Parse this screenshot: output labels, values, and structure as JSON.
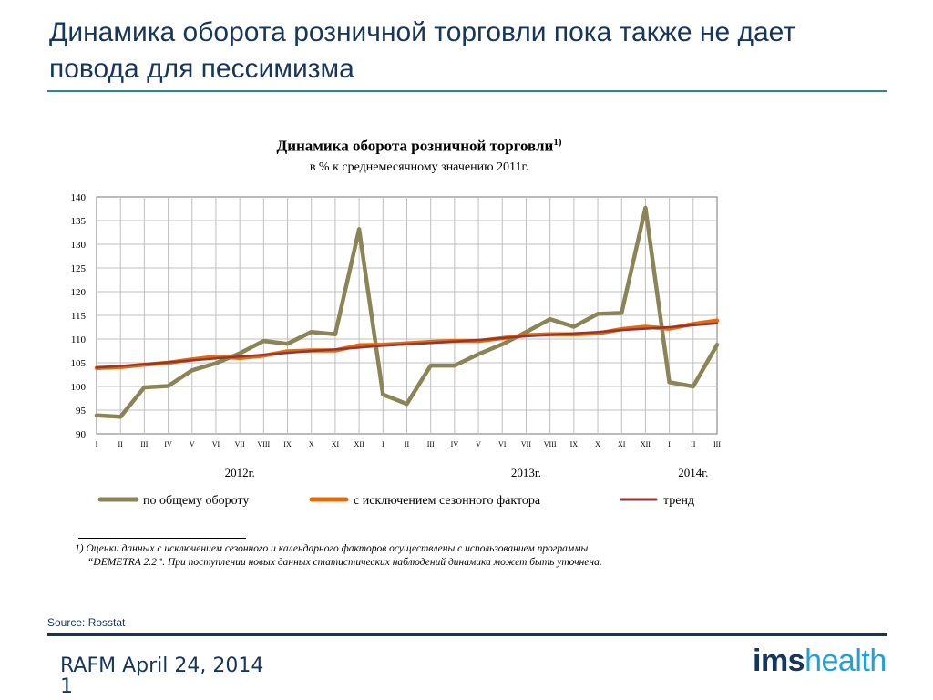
{
  "slide": {
    "title": "Динамика оборота розничной торговли пока также не дает повода для пессимизма",
    "source": "Source: Rosstat",
    "footer": "RAFM April 24, 2014",
    "page_number": "1",
    "logo_ims": "ims",
    "logo_health": "health"
  },
  "colors": {
    "title": "#17365d",
    "rule_top": "#31849b",
    "total": "#8b8457",
    "seasonal": "#e36c09",
    "trend": "#943634"
  },
  "chart_data": {
    "type": "line",
    "title": "Динамика оборота розничной торговли",
    "title_sup": "1)",
    "subtitle": "в % к среднемесячному значению 2011г.",
    "ylim": [
      90,
      140
    ],
    "yticks": [
      90,
      95,
      100,
      105,
      110,
      115,
      120,
      125,
      130,
      135,
      140
    ],
    "grid": true,
    "categories": [
      "I",
      "II",
      "III",
      "IV",
      "V",
      "VI",
      "VII",
      "VIII",
      "IX",
      "X",
      "XI",
      "XII",
      "I",
      "II",
      "III",
      "IV",
      "V",
      "VI",
      "VII",
      "VIII",
      "IX",
      "X",
      "XI",
      "XII",
      "I",
      "II",
      "III"
    ],
    "year_labels": [
      {
        "label": "2012г.",
        "at_index": 6
      },
      {
        "label": "2013г.",
        "at_index": 18
      },
      {
        "label": "2014г.",
        "at_index": 25
      }
    ],
    "legend_position": "bottom",
    "series": [
      {
        "name": "по общему обороту",
        "key": "total",
        "values": [
          93.9,
          93.6,
          99.8,
          100.1,
          103.4,
          104.9,
          107.0,
          109.6,
          109.0,
          111.5,
          111.0,
          133.2,
          98.3,
          96.3,
          104.4,
          104.4,
          106.8,
          108.9,
          111.5,
          114.2,
          112.6,
          115.3,
          115.5,
          137.7,
          100.9,
          100.0,
          108.8
        ]
      },
      {
        "name": "с исключением сезонного фактора",
        "key": "seasonal",
        "values": [
          103.9,
          104.1,
          104.6,
          105.0,
          105.7,
          106.3,
          106.0,
          106.5,
          107.4,
          107.6,
          107.6,
          108.7,
          108.8,
          109.1,
          109.4,
          109.6,
          109.6,
          110.2,
          110.8,
          111.0,
          111.0,
          111.2,
          112.1,
          112.6,
          112.2,
          113.2,
          113.9
        ]
      },
      {
        "name": "тренд",
        "key": "trend",
        "values": [
          104.0,
          104.3,
          104.7,
          105.1,
          105.5,
          105.9,
          106.3,
          106.7,
          107.1,
          107.5,
          107.8,
          108.2,
          108.6,
          108.9,
          109.2,
          109.5,
          109.8,
          110.2,
          110.6,
          110.9,
          111.2,
          111.5,
          111.9,
          112.2,
          112.5,
          112.9,
          113.3
        ]
      }
    ]
  },
  "footnote": {
    "line1": "1) Оценки  данных с исключением   сезонного и календарного  факторов осуществлены  с использованием   программы",
    "line2": "“DEMETRA 2.2”. При поступлении  новых данных статистических  наблюдений  динамика может  быть уточнена."
  }
}
